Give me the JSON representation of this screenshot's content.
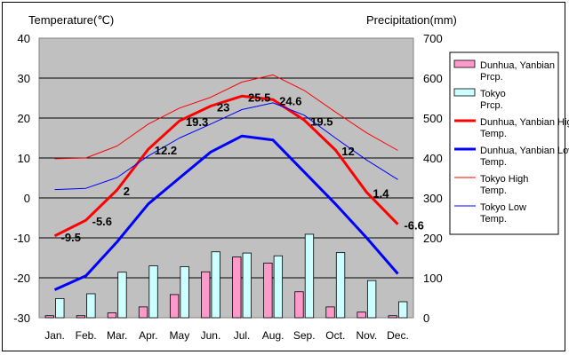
{
  "chart_data": {
    "type": "bar+line",
    "left_axis_title": "Temperature(℃)",
    "right_axis_title": "Precipitation(mm)",
    "categories": [
      "Jan.",
      "Feb.",
      "Mar.",
      "Apr.",
      "May",
      "Jun.",
      "Jul.",
      "Aug.",
      "Sep.",
      "Oct.",
      "Nov.",
      "Dec."
    ],
    "y_left": {
      "min": -30,
      "max": 40,
      "ticks": [
        -30,
        -20,
        -10,
        0,
        10,
        20,
        30,
        40
      ]
    },
    "y_right": {
      "min": 0,
      "max": 700,
      "ticks": [
        0,
        100,
        200,
        300,
        400,
        500,
        600,
        700
      ]
    },
    "grid": true,
    "legend_position": "right",
    "bars": [
      {
        "name": "Dunhua, Yanbian Prcp.",
        "color": "#ff99cc",
        "values": [
          5,
          5,
          12,
          27,
          58,
          115,
          152,
          137,
          65,
          27,
          14,
          5
        ]
      },
      {
        "name": "Tokyo Prcp.",
        "color": "#ccffff",
        "values": [
          48,
          60,
          114,
          130,
          128,
          165,
          162,
          155,
          209,
          163,
          93,
          40
        ]
      }
    ],
    "lines": [
      {
        "name": "Dunhua, Yanbian High Temp.",
        "color": "#ff0000",
        "width": 3,
        "values": [
          -9.5,
          -5.6,
          2,
          12.2,
          19.3,
          23,
          25.5,
          24.6,
          19.5,
          12,
          1.4,
          -6.6
        ]
      },
      {
        "name": "Dunhua, Yanbian Low Temp.",
        "color": "#0000ff",
        "width": 3,
        "values": [
          -23,
          -19.5,
          -11,
          -1.5,
          5,
          11.5,
          15.5,
          14.5,
          6.5,
          -1.5,
          -10,
          -19
        ]
      },
      {
        "name": "Tokyo High Temp.",
        "color": "#ff0000",
        "width": 1,
        "values": [
          9.8,
          10,
          13,
          18.5,
          22.5,
          25.2,
          29,
          30.8,
          26.9,
          21.5,
          16.3,
          11.9
        ]
      },
      {
        "name": "Tokyo Low Temp.",
        "color": "#0000ff",
        "width": 1,
        "values": [
          2.1,
          2.4,
          5.1,
          10.5,
          15,
          18.5,
          22.1,
          23.8,
          20.7,
          15,
          9.5,
          4.6
        ]
      }
    ],
    "data_labels": [
      "-9.5",
      "-5.6",
      "2",
      "12.2",
      "19.3",
      "23",
      "25.5",
      "24.6",
      "19.5",
      "12",
      "1.4",
      "-6.6"
    ]
  }
}
